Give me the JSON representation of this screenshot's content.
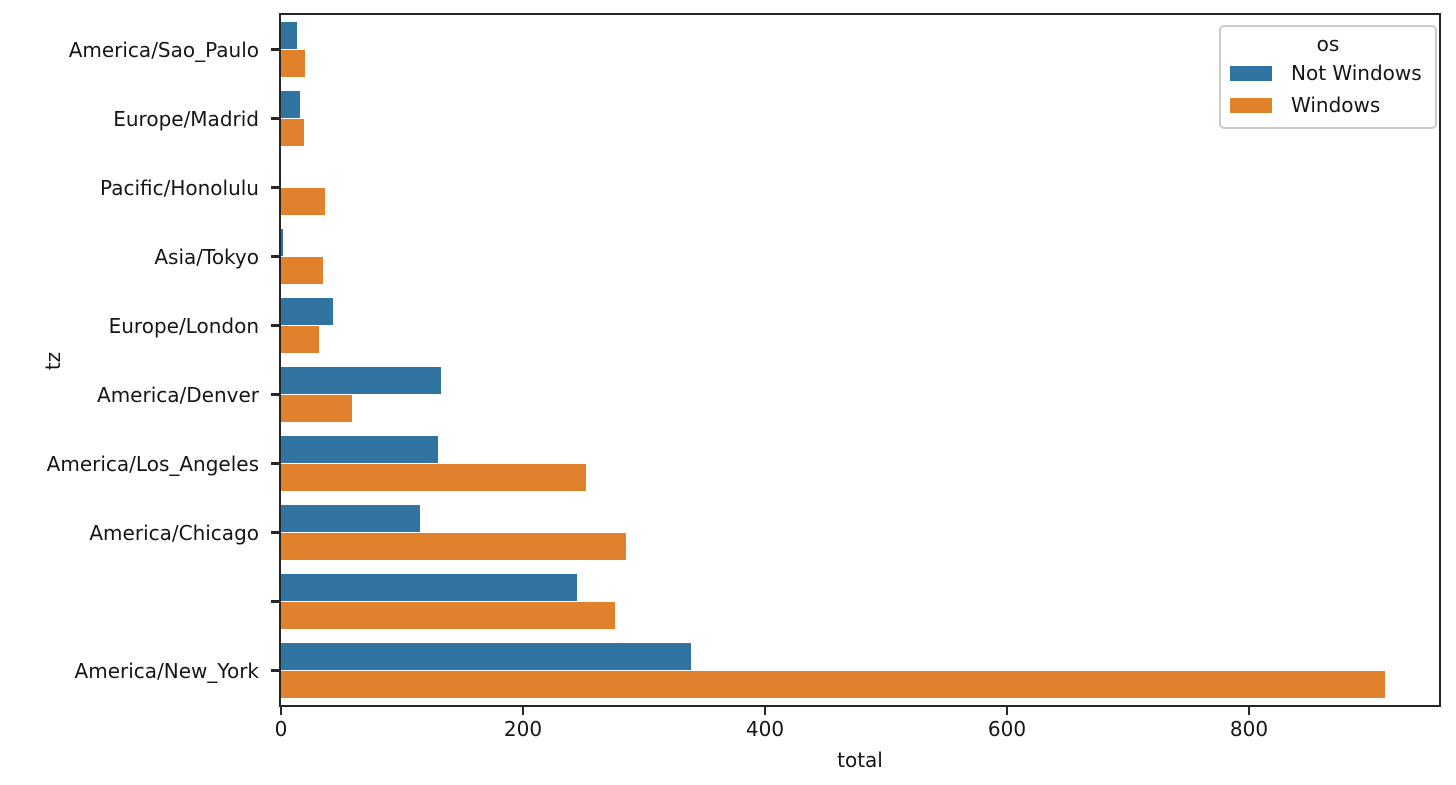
{
  "chart_data": {
    "type": "bar",
    "orientation": "horizontal",
    "title": "",
    "xlabel": "total",
    "ylabel": "tz",
    "categories": [
      "America/Sao_Paulo",
      "Europe/Madrid",
      "Pacific/Honolulu",
      "Asia/Tokyo",
      "Europe/London",
      "America/Denver",
      "America/Los_Angeles",
      "America/Chicago",
      "",
      "America/New_York"
    ],
    "series": [
      {
        "name": "Not Windows",
        "color": "#3274a1",
        "values": [
          13,
          16,
          0,
          2,
          43,
          132,
          130,
          115,
          245,
          339
        ]
      },
      {
        "name": "Windows",
        "color": "#e1812c",
        "values": [
          20,
          19,
          36,
          35,
          31,
          59,
          252,
          285,
          276,
          912
        ]
      }
    ],
    "xticks": [
      0,
      200,
      400,
      600,
      800
    ],
    "xlim": [
      0,
      957
    ],
    "grid": false,
    "bar_group_fraction": 0.8,
    "legend": {
      "title": "os",
      "position": "upper-right"
    }
  },
  "colors": {
    "spine": "#262626",
    "text": "#161616",
    "background": "#ffffff",
    "legend_border": "#cccccc"
  }
}
